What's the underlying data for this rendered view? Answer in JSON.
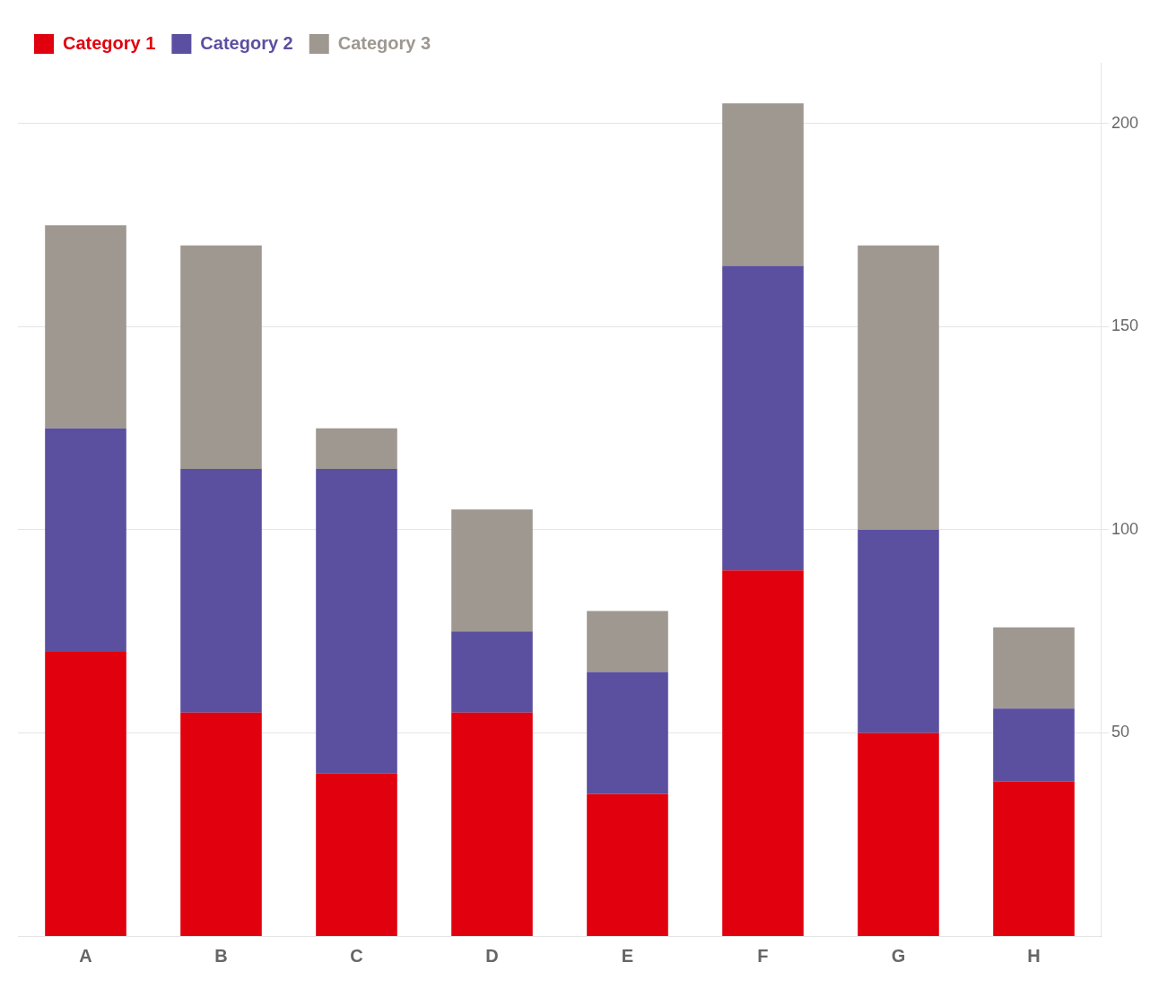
{
  "chart_data": {
    "type": "bar",
    "stacked": true,
    "categories": [
      "A",
      "B",
      "C",
      "D",
      "E",
      "F",
      "G",
      "H"
    ],
    "series": [
      {
        "name": "Category 1",
        "color": "#e0000e",
        "values": [
          70,
          55,
          40,
          55,
          35,
          90,
          50,
          38
        ]
      },
      {
        "name": "Category 2",
        "color": "#5b4fa0",
        "values": [
          55,
          60,
          75,
          20,
          30,
          75,
          50,
          18
        ]
      },
      {
        "name": "Category 3",
        "color": "#9e9890",
        "values": [
          50,
          55,
          10,
          30,
          15,
          40,
          70,
          20
        ]
      }
    ],
    "ylim": [
      0,
      215
    ],
    "yticks": [
      50,
      100,
      150,
      200
    ],
    "grid": true,
    "legend": "upper left"
  }
}
